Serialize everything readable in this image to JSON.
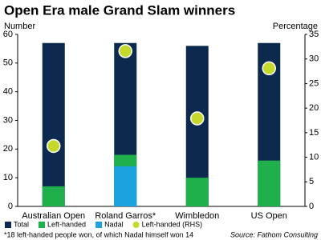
{
  "chart_data": {
    "type": "bar",
    "title": "Open Era male Grand Slam winners",
    "y_label": "Number",
    "y2_label": "Percentage",
    "categories": [
      "Australian Open",
      "Roland Garros*",
      "Wimbledon",
      "US Open"
    ],
    "series": [
      {
        "name": "Total",
        "color": "#0c2a4d",
        "values": [
          57,
          57,
          56,
          57
        ]
      },
      {
        "name": "Left-handed",
        "color": "#1faf4b",
        "values": [
          7,
          18,
          10,
          16
        ]
      },
      {
        "name": "Nadal",
        "color": "#1ba3df",
        "values": [
          null,
          14,
          null,
          null
        ]
      },
      {
        "name": "Left-handed (RHS)",
        "color": "#c5d92d",
        "axis": "y2",
        "values": [
          12.3,
          31.6,
          17.9,
          28.1
        ]
      }
    ],
    "ylim": [
      0,
      60
    ],
    "yticks": [
      0,
      10,
      20,
      30,
      40,
      50,
      60
    ],
    "y2lim": [
      0,
      35
    ],
    "y2ticks": [
      0,
      5,
      10,
      15,
      20,
      25,
      30,
      35
    ],
    "footnote": "*18 left-handed people won, of which Nadal himself won 14",
    "source": "Source: Fathom Consulting"
  }
}
